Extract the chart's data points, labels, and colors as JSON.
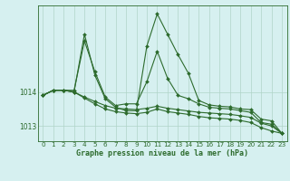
{
  "xlabel": "Graphe pression niveau de la mer (hPa)",
  "x": [
    0,
    1,
    2,
    3,
    4,
    5,
    6,
    7,
    8,
    9,
    10,
    11,
    12,
    13,
    14,
    15,
    16,
    17,
    18,
    19,
    20,
    21,
    22,
    23
  ],
  "series": [
    [
      1013.9,
      1014.05,
      1014.05,
      1014.05,
      1015.5,
      1014.6,
      1013.85,
      1013.6,
      1013.65,
      1013.65,
      1014.3,
      1015.2,
      1014.4,
      1013.9,
      1013.8,
      1013.65,
      1013.55,
      1013.52,
      1013.5,
      1013.45,
      1013.4,
      1013.1,
      1013.05,
      1012.78
    ],
    [
      1013.9,
      1014.05,
      1014.05,
      1014.0,
      1013.85,
      1013.72,
      1013.6,
      1013.52,
      1013.5,
      1013.48,
      1013.52,
      1013.58,
      1013.52,
      1013.48,
      1013.44,
      1013.4,
      1013.38,
      1013.36,
      1013.34,
      1013.3,
      1013.25,
      1013.08,
      1013.0,
      1012.78
    ],
    [
      1013.9,
      1014.05,
      1014.05,
      1014.0,
      1015.7,
      1014.5,
      1013.8,
      1013.55,
      1013.45,
      1013.45,
      1015.35,
      1016.3,
      1015.7,
      1015.1,
      1014.55,
      1013.75,
      1013.62,
      1013.58,
      1013.56,
      1013.5,
      1013.48,
      1013.2,
      1013.15,
      1012.78
    ],
    [
      1013.9,
      1014.05,
      1014.05,
      1014.0,
      1013.82,
      1013.65,
      1013.5,
      1013.42,
      1013.38,
      1013.36,
      1013.4,
      1013.5,
      1013.42,
      1013.38,
      1013.34,
      1013.28,
      1013.24,
      1013.22,
      1013.2,
      1013.16,
      1013.1,
      1012.95,
      1012.85,
      1012.78
    ]
  ],
  "line_color": "#2d6b2d",
  "marker_color": "#2d6b2d",
  "bg_color": "#d6f0f0",
  "plot_bg_color": "#d6f0f0",
  "grid_color": "#b0d4c8",
  "axis_color": "#2d6b2d",
  "text_color": "#2d6b2d",
  "ylim": [
    1012.55,
    1016.55
  ],
  "yticks": [
    1013,
    1014
  ],
  "marker": "D",
  "marker_size": 2.0,
  "linewidth": 0.8,
  "tick_fontsize": 5.2,
  "label_fontsize": 6.0
}
